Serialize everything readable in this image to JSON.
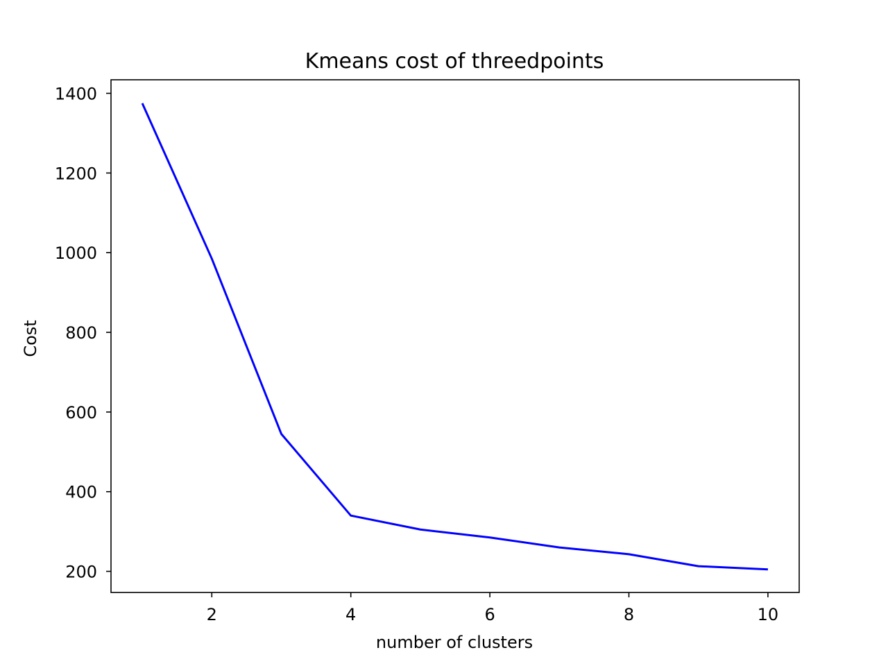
{
  "chart_data": {
    "type": "line",
    "title": "Kmeans cost of threedpoints",
    "xlabel": "number of clusters",
    "ylabel": "Cost",
    "x": [
      1,
      2,
      3,
      4,
      5,
      6,
      7,
      8,
      9,
      10
    ],
    "series": [
      {
        "color": "#0000ff",
        "values": [
          1375,
          985,
          545,
          340,
          305,
          285,
          260,
          243,
          213,
          205
        ]
      }
    ],
    "xlim": [
      0.55,
      10.45
    ],
    "ylim": [
      147,
      1434
    ],
    "xticks": [
      2,
      4,
      6,
      8,
      10
    ],
    "yticks": [
      200,
      400,
      600,
      800,
      1000,
      1200,
      1400
    ],
    "grid": false,
    "legend": "none"
  }
}
